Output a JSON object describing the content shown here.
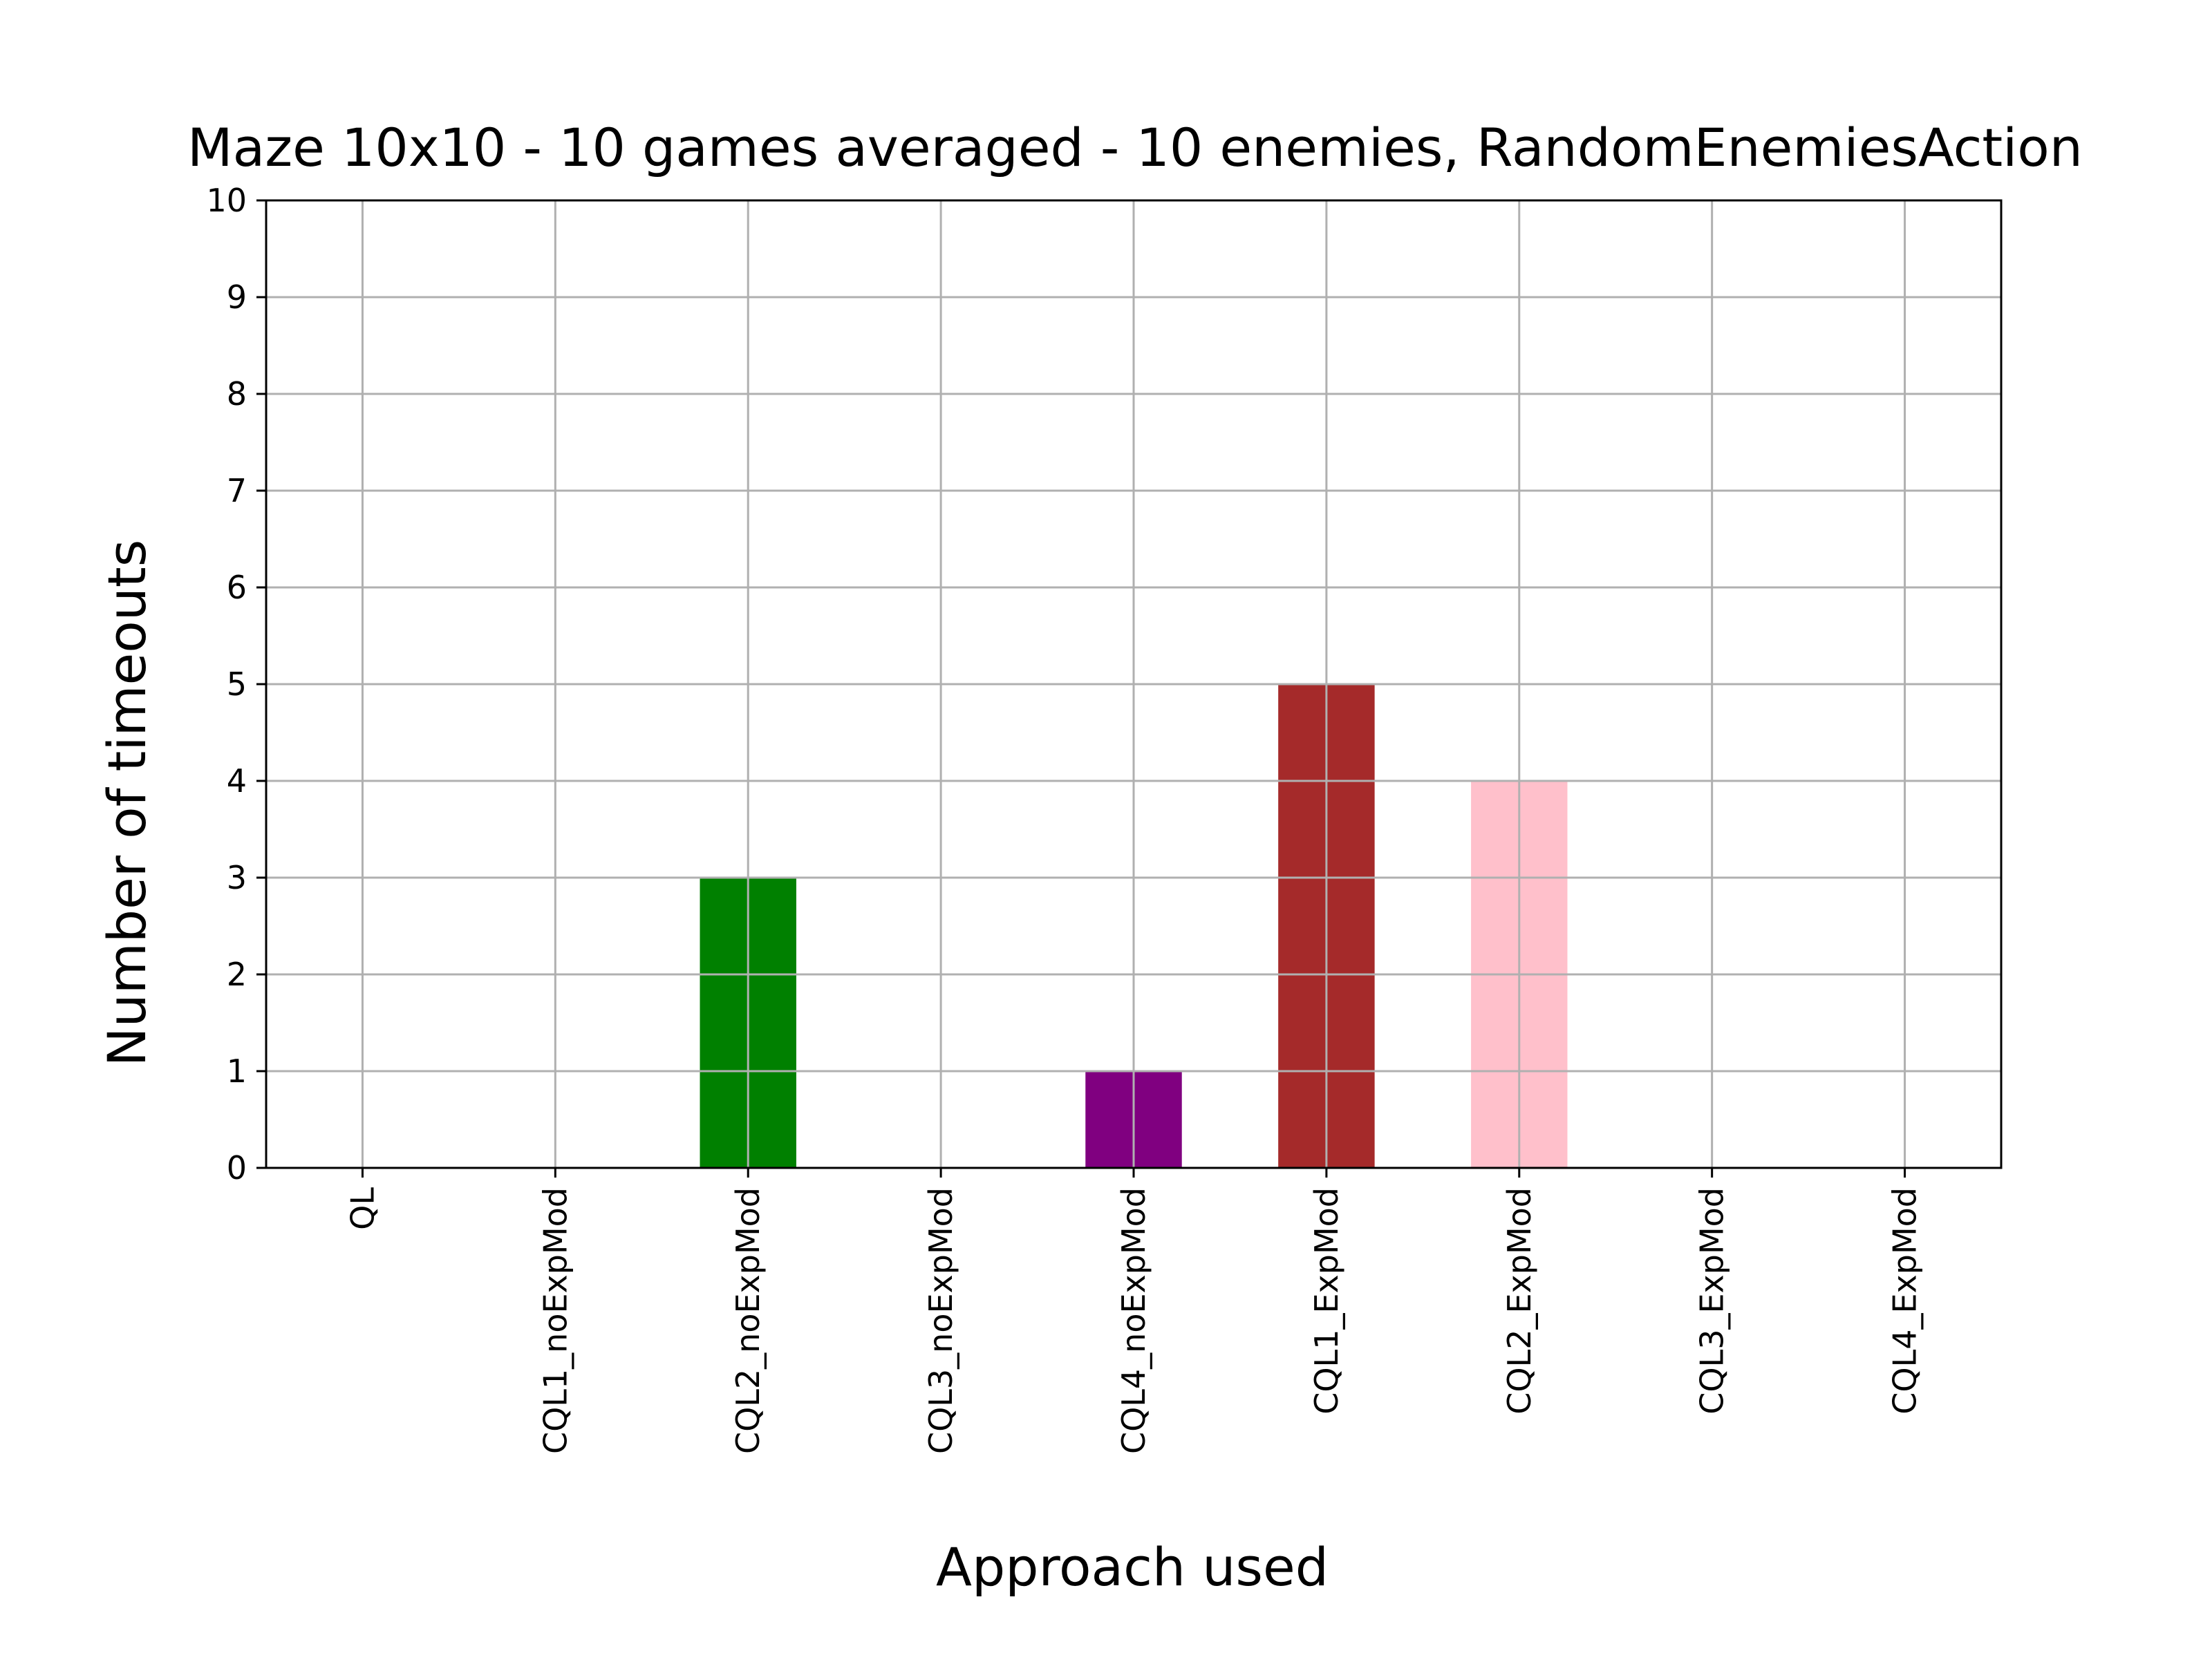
{
  "chart_data": {
    "type": "bar",
    "title": "Maze 10x10 - 10 games averaged - 10 enemies, RandomEnemiesAction",
    "xlabel": "Approach used",
    "ylabel": "Number of timeouts",
    "ylim": [
      0,
      10
    ],
    "yticks": [
      0,
      1,
      2,
      3,
      4,
      5,
      6,
      7,
      8,
      9,
      10
    ],
    "grid": true,
    "categories": [
      "QL",
      "CQL1_noExpMod",
      "CQL2_noExpMod",
      "CQL3_noExpMod",
      "CQL4_noExpMod",
      "CQL1_ExpMod",
      "CQL2_ExpMod",
      "CQL3_ExpMod",
      "CQL4_ExpMod"
    ],
    "values": [
      0,
      0,
      3,
      0,
      1,
      5,
      4,
      0,
      0
    ],
    "colors": [
      "#1f77b4",
      "#ff7f0e",
      "#008000",
      "#d62728",
      "#800080",
      "#a52a2a",
      "#ffc0cb",
      "#808080",
      "#bcbd22"
    ]
  }
}
